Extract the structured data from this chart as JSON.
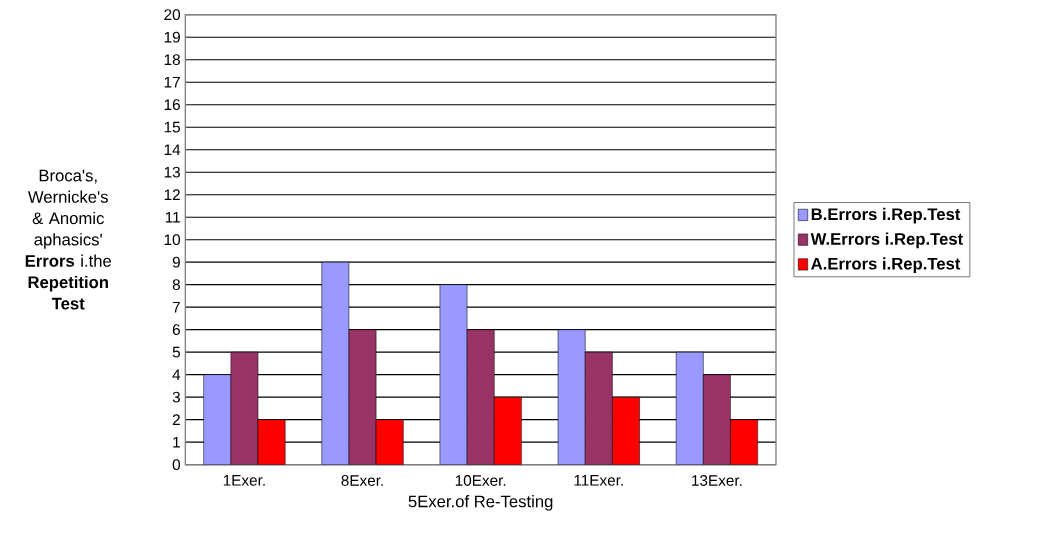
{
  "chart_data": {
    "type": "bar",
    "xlabel": "5Exer.of Re-Testing",
    "ylabel": "Broca's, Wernicke's & Anomic aphasics' **Errors** i.the **Repetition Test**",
    "categories": [
      "1Exer.",
      "8Exer.",
      "10Exer.",
      "11Exer.",
      "13Exer."
    ],
    "series": [
      {
        "name": "B.Errors i.Rep.Test",
        "color": "#9999ff",
        "values": [
          4,
          9,
          8,
          6,
          5
        ]
      },
      {
        "name": "W.Errors i.Rep.Test",
        "color": "#993366",
        "values": [
          5,
          6,
          6,
          5,
          4
        ]
      },
      {
        "name": "A.Errors i.Rep.Test",
        "color": "#ff0000",
        "values": [
          2,
          2,
          3,
          3,
          2
        ]
      }
    ],
    "ylim": [
      0,
      20
    ],
    "yticks": [
      0,
      1,
      2,
      3,
      4,
      5,
      6,
      7,
      8,
      9,
      10,
      11,
      12,
      13,
      14,
      15,
      16,
      17,
      18,
      19,
      20
    ],
    "grid": "y",
    "legend": "right"
  }
}
